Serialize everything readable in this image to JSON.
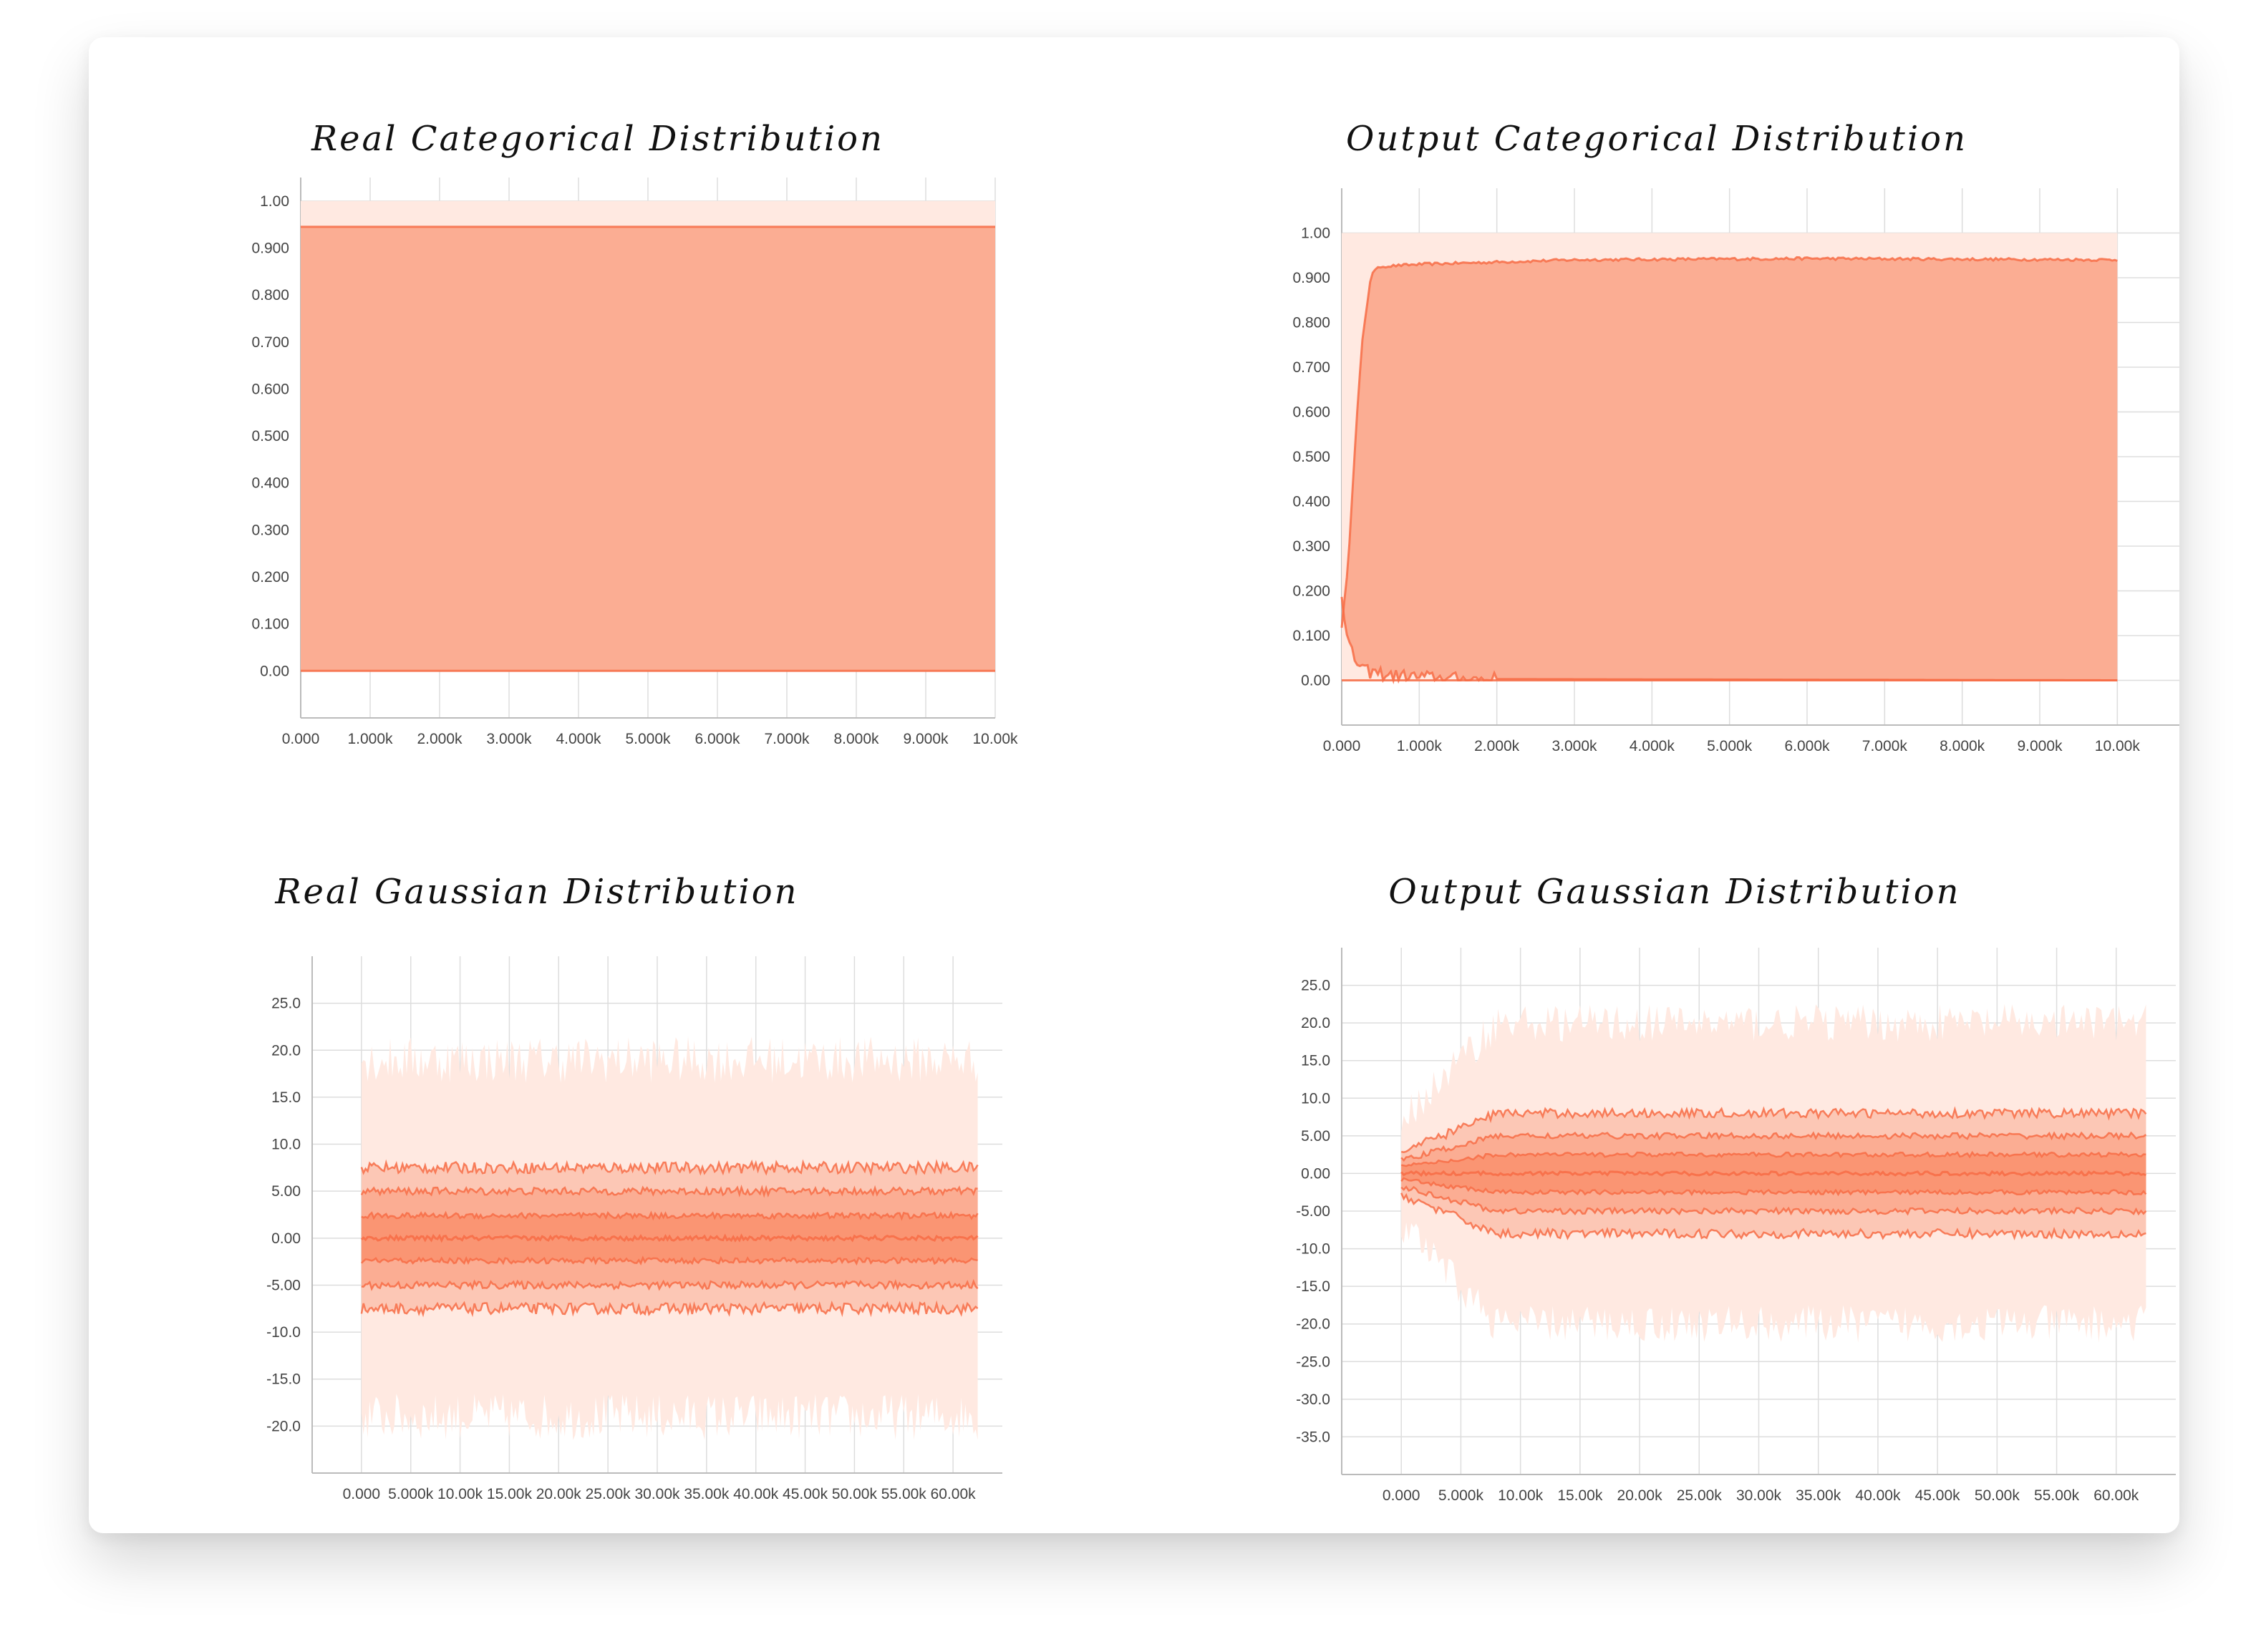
{
  "colors": {
    "base": "#ff7043",
    "band_outer": "#ffe9e1",
    "band_mid": "#fcc7b5",
    "band_inner": "#fbad93",
    "band_core": "#fa9573",
    "line": "#f76c45",
    "grid": "#dddddd",
    "axis": "#bbbbbb"
  },
  "panels": [
    {
      "id": "real-categorical",
      "title": "Real Categorical Distribution",
      "chart_data": {
        "type": "area",
        "title": "Real Categorical Distribution",
        "xlim": [
          0,
          10000
        ],
        "ylim": [
          -0.1,
          1.05
        ],
        "x_ticks": [
          0,
          1000,
          2000,
          3000,
          4000,
          5000,
          6000,
          7000,
          8000,
          9000,
          10000
        ],
        "x_tick_labels": [
          "0.000",
          "1.000k",
          "2.000k",
          "3.000k",
          "4.000k",
          "5.000k",
          "6.000k",
          "7.000k",
          "8.000k",
          "9.000k",
          "10.00k"
        ],
        "y_ticks": [
          0,
          0.1,
          0.2,
          0.3,
          0.4,
          0.5,
          0.6,
          0.7,
          0.8,
          0.9,
          1.0
        ],
        "y_tick_labels": [
          "0.00",
          "0.100",
          "0.200",
          "0.300",
          "0.400",
          "0.500",
          "0.600",
          "0.700",
          "0.800",
          "0.900",
          "1.00"
        ],
        "grid": true,
        "x_range": [
          0,
          10000
        ],
        "bands": [
          {
            "level": "outer",
            "lower": 0.0,
            "upper": 1.0
          },
          {
            "level": "main",
            "lower": 0.0,
            "upper": 0.945
          }
        ],
        "lines": [
          0.0,
          0.945
        ]
      }
    },
    {
      "id": "output-categorical",
      "title": "Output Categorical Distribution",
      "chart_data": {
        "type": "area",
        "title": "Output Categorical Distribution",
        "xlim": [
          0,
          10800
        ],
        "ylim": [
          -0.1,
          1.1
        ],
        "x_ticks": [
          0,
          1000,
          2000,
          3000,
          4000,
          5000,
          6000,
          7000,
          8000,
          9000,
          10000
        ],
        "x_tick_labels": [
          "0.000",
          "1.000k",
          "2.000k",
          "3.000k",
          "4.000k",
          "5.000k",
          "6.000k",
          "7.000k",
          "8.000k",
          "9.000k",
          "10.00k"
        ],
        "y_ticks": [
          0,
          0.1,
          0.2,
          0.3,
          0.4,
          0.5,
          0.6,
          0.7,
          0.8,
          0.9,
          1.0
        ],
        "y_tick_labels": [
          "0.00",
          "0.100",
          "0.200",
          "0.300",
          "0.400",
          "0.500",
          "0.600",
          "0.700",
          "0.800",
          "0.900",
          "1.00"
        ],
        "grid": true,
        "x_range": [
          0,
          10000
        ],
        "band_profile": {
          "outer_upper": 1.0,
          "upper_plateau": 0.94,
          "rise_points": [
            [
              0,
              0.12
            ],
            [
              80,
              0.25
            ],
            [
              180,
              0.55
            ],
            [
              260,
              0.75
            ],
            [
              380,
              0.91
            ],
            [
              500,
              0.925
            ],
            [
              1000,
              0.93
            ],
            [
              3000,
              0.94
            ],
            [
              6000,
              0.943
            ],
            [
              10000,
              0.94
            ]
          ],
          "lower_points": [
            [
              0,
              0.2
            ],
            [
              60,
              0.1
            ],
            [
              150,
              0.05
            ],
            [
              300,
              0.02
            ],
            [
              700,
              0.01
            ],
            [
              1500,
              0.003
            ],
            [
              10000,
              0.0
            ]
          ]
        }
      }
    },
    {
      "id": "real-gaussian",
      "title": "Real Gaussian Distribution",
      "chart_data": {
        "type": "area",
        "title": "Real Gaussian Distribution",
        "xlim": [
          -5000,
          65000
        ],
        "ylim": [
          -25,
          30
        ],
        "x_ticks": [
          0,
          5000,
          10000,
          15000,
          20000,
          25000,
          30000,
          35000,
          40000,
          45000,
          50000,
          55000,
          60000
        ],
        "x_tick_labels": [
          "0.000",
          "5.000k",
          "10.00k",
          "15.00k",
          "20.00k",
          "25.00k",
          "30.00k",
          "35.00k",
          "40.00k",
          "45.00k",
          "50.00k",
          "55.00k",
          "60.00k"
        ],
        "y_ticks": [
          -20,
          -15,
          -10,
          -5,
          0,
          5,
          10,
          15,
          20,
          25
        ],
        "y_tick_labels": [
          "-20.0",
          "-15.0",
          "-10.0",
          "-5.00",
          "0.00",
          "5.00",
          "10.0",
          "15.0",
          "20.0",
          "25.0"
        ],
        "grid": true,
        "x_range": [
          0,
          62500
        ],
        "percentile_bands": {
          "outer": [
            -19,
            19
          ],
          "mid": [
            -7.5,
            7.5
          ],
          "inner": [
            -5,
            5
          ],
          "core": [
            -2.4,
            2.4
          ],
          "median": 0
        }
      }
    },
    {
      "id": "output-gaussian",
      "title": "Output Gaussian Distribution",
      "chart_data": {
        "type": "area",
        "title": "Output Gaussian Distribution",
        "xlim": [
          -5000,
          65000
        ],
        "ylim": [
          -40,
          30
        ],
        "x_ticks": [
          0,
          5000,
          10000,
          15000,
          20000,
          25000,
          30000,
          35000,
          40000,
          45000,
          50000,
          55000,
          60000
        ],
        "x_tick_labels": [
          "0.000",
          "5.000k",
          "10.00k",
          "15.00k",
          "20.00k",
          "25.00k",
          "30.00k",
          "35.00k",
          "40.00k",
          "45.00k",
          "50.00k",
          "55.00k",
          "60.00k"
        ],
        "y_ticks": [
          -35,
          -30,
          -25,
          -20,
          -15,
          -10,
          -5,
          0,
          5,
          10,
          15,
          20,
          25
        ],
        "y_tick_labels": [
          "-35.0",
          "-30.0",
          "-25.0",
          "-20.0",
          "-15.0",
          "-10.0",
          "-5.00",
          "0.00",
          "5.00",
          "10.0",
          "15.0",
          "20.0",
          "25.0"
        ],
        "grid": true,
        "x_range": [
          0,
          62500
        ],
        "percentile_bands": {
          "outer": [
            -20,
            20
          ],
          "mid": [
            -8,
            8
          ],
          "inner": [
            -5,
            5
          ],
          "core": [
            -2.5,
            2.5
          ],
          "median": 0,
          "warmup_until": 8000
        }
      }
    }
  ]
}
